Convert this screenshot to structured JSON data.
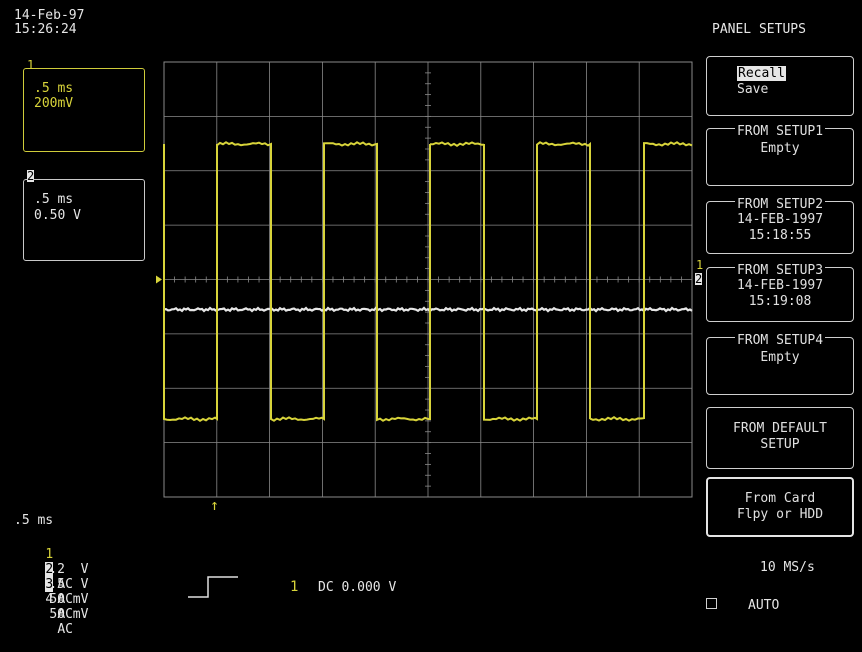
{
  "header": {
    "date": "14-Feb-97",
    "time": "15:26:24"
  },
  "channels": [
    {
      "id": "1",
      "timebase": ".5 ms",
      "volts": "200mV"
    },
    {
      "id": "2",
      "timebase": ".5 ms",
      "volts": "0.50 V"
    }
  ],
  "menu": {
    "title": "PANEL SETUPS",
    "recall": "Recall",
    "save": "Save",
    "setups": [
      {
        "title": "FROM SETUP1",
        "line1": "Empty",
        "line2": ""
      },
      {
        "title": "FROM SETUP2",
        "line1": "14-FEB-1997",
        "line2": "15:18:55"
      },
      {
        "title": "FROM SETUP3",
        "line1": "14-FEB-1997",
        "line2": "15:19:08"
      },
      {
        "title": "FROM SETUP4",
        "line1": "Empty",
        "line2": ""
      }
    ],
    "default_line1": "FROM DEFAULT",
    "default_line2": "SETUP",
    "card_line1": "From Card",
    "card_line2": "Flpy or HDD",
    "sample_rate": "10 MS/s",
    "trigger_mode": "AUTO"
  },
  "bottom": {
    "timebase": ".5 ms",
    "channel_rows": [
      {
        "num": "1",
        "volts": ".2  V",
        "coupling": "AC"
      },
      {
        "num": "2",
        "volts": ".5  V",
        "coupling": "AC"
      },
      {
        "num": "3",
        "volts": "50 mV",
        "coupling": "AC"
      },
      {
        "num": "4",
        "volts": "50 mV",
        "coupling": "AC"
      }
    ],
    "trigger_channel": "1",
    "trigger_text": "DC 0.000 V"
  },
  "markers": {
    "ch1_level": "1",
    "ch2_level": "2",
    "trigger_arrow": "↑"
  },
  "colors": {
    "trace_yellow": "#d8d43a",
    "trace_white": "#e6e6e6",
    "grid": "#8a8a8a",
    "background": "#000000"
  }
}
